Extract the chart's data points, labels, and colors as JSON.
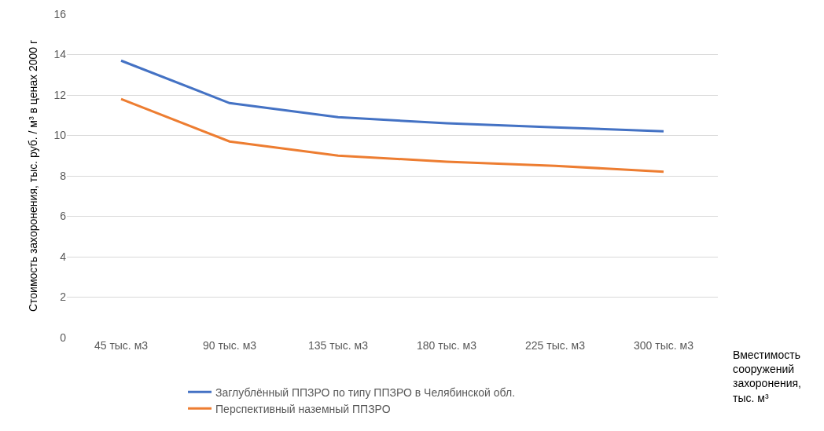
{
  "chart_data": {
    "type": "line",
    "xlabel": "Вместимость сооружений захоронения, тыс. м³",
    "ylabel": "Стоимость захоронения, тыс. руб. / м³ в ценах 2000 г",
    "categories": [
      "45 тыс. м3",
      "90 тыс. м3",
      "135 тыс. м3",
      "180 тыс. м3",
      "225 тыс. м3",
      "300 тыс. м3"
    ],
    "series": [
      {
        "name": "Заглублённый ППЗРО по типу ППЗРО в Челябинской обл.",
        "color": "#4472c4",
        "values": [
          13.7,
          11.6,
          10.9,
          10.6,
          10.4,
          10.2
        ]
      },
      {
        "name": "Перспективный наземный ППЗРО",
        "color": "#ed7d31",
        "values": [
          11.8,
          9.7,
          9.0,
          8.7,
          8.5,
          8.2
        ]
      }
    ],
    "ylim": [
      0,
      16
    ],
    "yticks": [
      0,
      2,
      4,
      6,
      8,
      10,
      12,
      14,
      16
    ],
    "grid": "y",
    "legend": "bottom",
    "marker": "none",
    "line_style": "solid"
  }
}
